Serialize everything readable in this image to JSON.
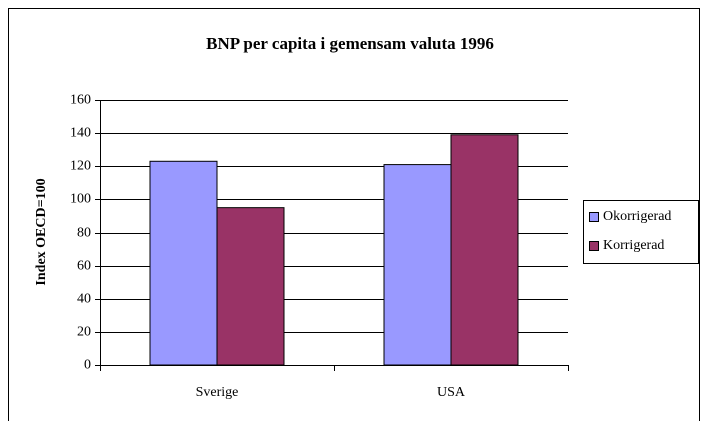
{
  "chart_data": {
    "type": "bar",
    "title": "BNP per capita i gemensam valuta 1996",
    "y_label": "Index OECD=100",
    "categories": [
      "Sverige",
      "USA"
    ],
    "series": [
      {
        "name": "Okorrigerad",
        "color": "#9999ff",
        "values": [
          123,
          121
        ]
      },
      {
        "name": "Korrigerad",
        "color": "#993366",
        "values": [
          95,
          139
        ]
      }
    ],
    "ylim": [
      0,
      160
    ],
    "yticks": [
      0,
      20,
      40,
      60,
      80,
      100,
      120,
      140,
      160
    ],
    "grid": true,
    "legend": "right"
  }
}
